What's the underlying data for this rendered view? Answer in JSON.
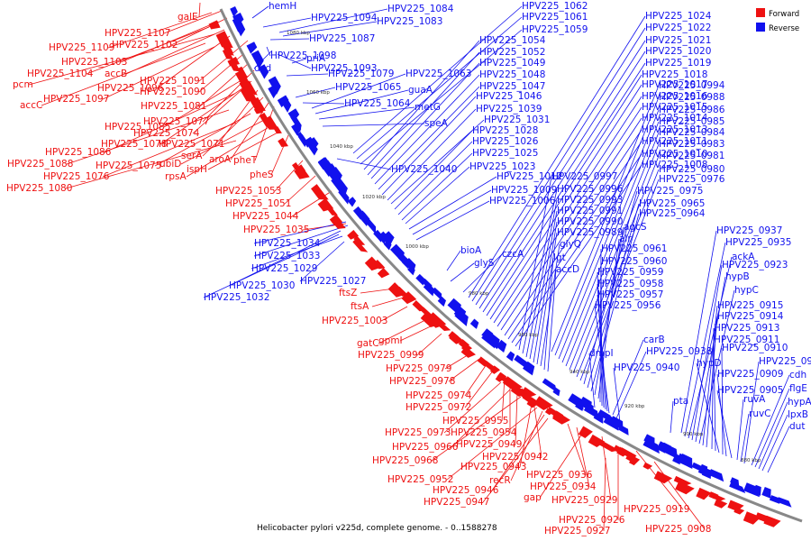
{
  "caption": "Helicobacter pylori v225d, complete genome. - 0..1588278",
  "legend": [
    {
      "name": "Forward",
      "color": "#ee1111"
    },
    {
      "name": "Reverse",
      "color": "#1111ee"
    }
  ],
  "colors": {
    "forward": "#ee1111",
    "reverse": "#1111ee",
    "backbone": "#888888"
  },
  "ticks": [
    "1080 kbp",
    "1060 kbp",
    "1040 kbp",
    "1020 kbp",
    "1000 kbp",
    "980 kbp",
    "960 kbp",
    "940 kbp",
    "920 kbp",
    "900 kbp",
    "880 kbp"
  ],
  "forward_labels": [
    "galE",
    "HPV225_1107",
    "HPV225_1109",
    "HPV225_1102",
    "HPV225_1103",
    "HPV225_1104",
    "accB",
    "pcm",
    "HPV225_1096",
    "HPV225_1091",
    "accC",
    "HPV225_1097",
    "HPV225_1090",
    "HPV225_1081",
    "HPV225_1077",
    "HPV225_1085",
    "HPV225_1074",
    "HPV225_1078",
    "HPV225_1071",
    "HPV225_1086",
    "serA",
    "aroA",
    "pheT",
    "HPV225_1088",
    "HPV225_1075",
    "ubiD",
    "HPV225_1076",
    "rpsA",
    "ispH",
    "pheS",
    "HPV225_1080",
    "HPV225_1053",
    "HPV225_1051",
    "HPV225_1044",
    "HPV225_1035",
    "ftsZ",
    "ftsA",
    "HPV225_1003",
    "gatC",
    "gpmI",
    "HPV225_0999",
    "HPV225_0979",
    "HPV225_0978",
    "HPV225_0974",
    "HPV225_0972",
    "HPV225_0955",
    "HPV225_0973",
    "HPV225_0954",
    "HPV225_0966",
    "HPV225_0949",
    "HPV225_0968",
    "HPV225_0942",
    "HPV225_0943",
    "HPV225_0952",
    "recR",
    "HPV225_0946",
    "HPV225_0947",
    "HPV225_0936",
    "HPV225_0934",
    "gap",
    "HPV225_0929",
    "HPV225_0919",
    "HPV225_0926",
    "HPV225_0927",
    "HPV225_0908"
  ],
  "reverse_labels": [
    "hemH",
    "HPV225_1094",
    "HPV225_1084",
    "HPV225_1083",
    "HPV225_1087",
    "HPV225_1098",
    "dcd",
    "HPV225_1093",
    "priA",
    "HPV225_1079",
    "HPV225_1065",
    "HPV225_1064",
    "HPV225_1063",
    "guaA",
    "metG",
    "speA",
    "HPV225_1040",
    "HPV225_1034",
    "HPV225_1033",
    "HPV225_1029",
    "HPV225_1027",
    "HPV225_1030",
    "HPV225_1032",
    "HPV225_1062",
    "HPV225_1061",
    "HPV225_1059",
    "HPV225_1054",
    "HPV225_1052",
    "HPV225_1049",
    "HPV225_1048",
    "HPV225_1047",
    "HPV225_1046",
    "HPV225_1039",
    "HPV225_1031",
    "HPV225_1028",
    "HPV225_1026",
    "HPV225_1025",
    "HPV225_1023",
    "HPV225_1012",
    "HPV225_1009",
    "HPV225_1006",
    "bioA",
    "glyS",
    "czcA",
    "HPV225_1024",
    "HPV225_1022",
    "HPV225_1021",
    "HPV225_1020",
    "HPV225_1019",
    "HPV225_1018",
    "HPV225_1017",
    "HPV225_1016",
    "HPV225_1015",
    "HPV225_1014",
    "HPV225_1013",
    "HPV225_1011",
    "HPV225_1010",
    "HPV225_1008",
    "HPV225_0997",
    "HPV225_0996",
    "HPV225_0993",
    "HPV225_0991",
    "HPV225_0990",
    "HPV225_0989",
    "glyQ",
    "lgt",
    "accD",
    "HPV225_0994",
    "HPV225_0988",
    "HPV225_0986",
    "HPV225_0985",
    "HPV225_0984",
    "HPV225_0983",
    "HPV225_0981",
    "HPV225_0980",
    "HPV225_0976",
    "HPV225_0975",
    "HPV225_0965",
    "HPV225_0964",
    "agcS",
    "alr",
    "HPV225_0961",
    "HPV225_0960",
    "HPV225_0959",
    "HPV225_0958",
    "HPV225_0957",
    "HPV225_0956",
    "dmpI",
    "carB",
    "HPV225_0938",
    "HPV225_0940",
    "pta",
    "HPV225_0937",
    "HPV225_0935",
    "ackA",
    "HPV225_0923",
    "hypB",
    "hypC",
    "HPV225_0915",
    "HPV225_0914",
    "HPV225_0913",
    "HPV225_0911",
    "hypD",
    "HPV225_0910",
    "HPV225_0909",
    "HPV225_0905",
    "ruvA",
    "ruvC",
    "HPV225_0902",
    "cdh",
    "flgE",
    "hypA",
    "lpxB",
    "dut"
  ]
}
